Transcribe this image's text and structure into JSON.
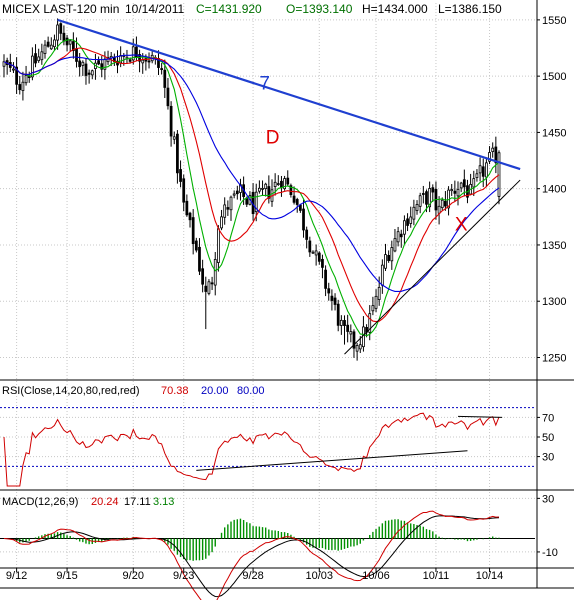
{
  "header": {
    "symbol_interval": "MICEX LAST-120 min",
    "date": "10/14/2011",
    "close": "C=1431.920",
    "open": "O=1393.140",
    "high": "H=1434.000",
    "low": "L=1386.150"
  },
  "colors": {
    "background": "#ffffff",
    "grid": "#c8c8c8",
    "candle_outline": "#000000",
    "ma_fast": "#00b000",
    "ma_mid": "#e00000",
    "ma_slow": "#0000e0",
    "trendline_7": "#1f3fd0",
    "label_red": "#e00000",
    "rsi_line": "#d00000",
    "rsi_band": "#0000c0",
    "macd_line": "#d00000",
    "signal_line": "#000000",
    "histogram": "#009000"
  },
  "chart_data": [
    {
      "type": "candlestick",
      "title": "MICEX LAST-120 min",
      "ylim": [
        1230,
        1565
      ],
      "y_ticks": [
        1250,
        1300,
        1350,
        1400,
        1450,
        1500,
        1550
      ],
      "x_tick_labels": [
        "9/12",
        "9/15",
        "9/20",
        "9/23",
        "9/28",
        "10/03",
        "10/06",
        "10/11",
        "10/14"
      ],
      "n_bars": 158,
      "anchors": [
        [
          0,
          1510
        ],
        [
          5,
          1495
        ],
        [
          12,
          1520
        ],
        [
          17,
          1540
        ],
        [
          22,
          1520
        ],
        [
          27,
          1505
        ],
        [
          32,
          1512
        ],
        [
          37,
          1518
        ],
        [
          42,
          1522
        ],
        [
          47,
          1515
        ],
        [
          50,
          1505
        ],
        [
          53,
          1455
        ],
        [
          57,
          1385
        ],
        [
          61,
          1345
        ],
        [
          64,
          1305
        ],
        [
          66,
          1320
        ],
        [
          68,
          1370
        ],
        [
          71,
          1385
        ],
        [
          75,
          1395
        ],
        [
          79,
          1385
        ],
        [
          82,
          1395
        ],
        [
          85,
          1400
        ],
        [
          88,
          1410
        ],
        [
          92,
          1395
        ],
        [
          96,
          1360
        ],
        [
          100,
          1330
        ],
        [
          104,
          1300
        ],
        [
          108,
          1270
        ],
        [
          111,
          1262
        ],
        [
          114,
          1270
        ],
        [
          118,
          1300
        ],
        [
          121,
          1340
        ],
        [
          124,
          1355
        ],
        [
          128,
          1375
        ],
        [
          131,
          1385
        ],
        [
          135,
          1395
        ],
        [
          138,
          1380
        ],
        [
          141,
          1395
        ],
        [
          145,
          1405
        ],
        [
          148,
          1395
        ],
        [
          151,
          1412
        ],
        [
          154,
          1425
        ],
        [
          157,
          1432
        ]
      ],
      "last_bar": {
        "open": 1393.14,
        "high": 1434.0,
        "low": 1386.15,
        "close": 1431.92
      },
      "moving_averages": [
        {
          "color": "ma_fast",
          "period": 8
        },
        {
          "color": "ma_mid",
          "period": 16
        },
        {
          "color": "ma_slow",
          "period": 30
        }
      ],
      "annotations": [
        {
          "text": "7",
          "color": "trendline_7",
          "bar": 81,
          "price": 1488
        },
        {
          "text": "D",
          "color": "label_red",
          "bar": 83,
          "price": 1440
        },
        {
          "text": "X",
          "color": "label_red",
          "bar": 143,
          "price": 1363
        }
      ],
      "trendlines": [
        {
          "name": "trendline-7",
          "color": "trendline_7",
          "from": [
            17,
            1550
          ],
          "to": [
            158,
            1416
          ],
          "width": 2.2
        },
        {
          "name": "support-line",
          "color": "candle_outline",
          "from": [
            108,
            1253
          ],
          "to": [
            158,
            1413
          ],
          "width": 1
        }
      ]
    },
    {
      "type": "line",
      "title": "RSI(Close,14,20,80,red,red)",
      "series": [
        {
          "name": "RSI",
          "current": "70.38"
        }
      ],
      "bands": [
        {
          "value": "20.00",
          "level": 20
        },
        {
          "value": "80.00",
          "level": 80
        }
      ],
      "ylim": [
        0,
        100
      ],
      "y_ticks": [
        30,
        50,
        70
      ],
      "trendlines": [
        {
          "name": "rsi-trendline-low",
          "from": [
            61,
            16
          ],
          "to": [
            147,
            36
          ]
        },
        {
          "name": "rsi-trendline-high",
          "from": [
            144,
            71
          ],
          "to": [
            158,
            70
          ]
        }
      ]
    },
    {
      "type": "line",
      "title": "MACD(12,26,9)",
      "series": [
        {
          "name": "MACD",
          "current": "20.24"
        },
        {
          "name": "Signal",
          "current": "17.11"
        },
        {
          "name": "Histogram",
          "current": "3.13"
        }
      ],
      "ylim": [
        -22,
        34
      ],
      "y_ticks": [
        30,
        -10
      ],
      "zero_line": 0
    }
  ]
}
